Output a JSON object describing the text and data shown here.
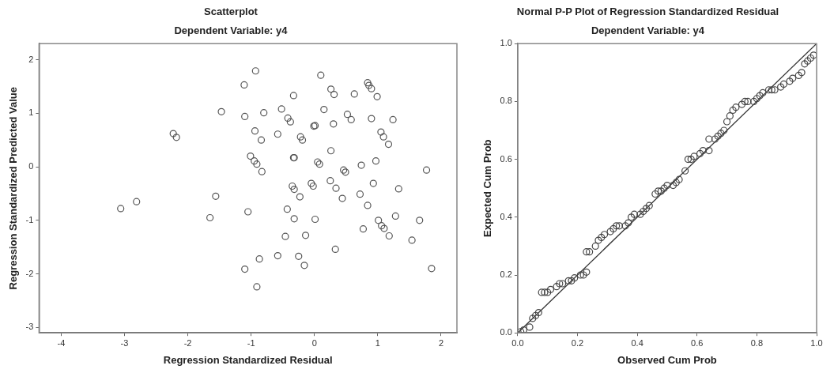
{
  "chart_data": [
    {
      "type": "scatter",
      "title": "Scatterplot",
      "subtitle": "Dependent Variable: y4",
      "xlabel": "Regression Standardized Residual",
      "ylabel": "Regression Standardized Predicted Value",
      "xlim": [
        -4.35,
        2.25
      ],
      "ylim": [
        -3.1,
        2.3
      ],
      "xticks": [
        -4,
        -3,
        -2,
        -1,
        0,
        1,
        2
      ],
      "yticks": [
        -3,
        -2,
        -1,
        0,
        1,
        2
      ],
      "grid": false,
      "legend": false,
      "marker": "circle",
      "series": [
        {
          "color": "#555555",
          "x": [
            -3.06,
            -2.81,
            -2.23,
            -2.18,
            -1.47,
            -1.56,
            -1.65,
            -1.11,
            -1.1,
            -1.05,
            -1.1,
            -1.01,
            -0.93,
            0.1,
            0.84,
            0.86,
            0.9,
            0.26,
            0.31,
            0.63,
            0.99,
            -0.33,
            -0.52,
            -0.8,
            0.15,
            0.52,
            0.58,
            0.9,
            1.24,
            -0.42,
            -0.38,
            -0.01,
            0.01,
            0.3,
            -0.94,
            -0.84,
            -0.58,
            -0.22,
            -0.19,
            1.05,
            1.09,
            1.17,
            0.26,
            -0.95,
            -0.91,
            -0.83,
            -0.33,
            -0.32,
            0.05,
            0.08,
            0.74,
            0.97,
            1.77,
            0.46,
            0.49,
            -0.35,
            -0.32,
            -0.05,
            -0.02,
            0.25,
            0.34,
            0.93,
            1.33,
            -0.23,
            0.44,
            0.72,
            0.84,
            -0.43,
            -0.32,
            0.01,
            1.01,
            1.06,
            1.1,
            1.28,
            1.66,
            0.77,
            1.18,
            1.54,
            -0.46,
            -0.14,
            0.33,
            -0.87,
            -0.58,
            -0.25,
            -0.16,
            -0.91,
            1.85
          ],
          "values": [
            -0.78,
            -0.65,
            0.62,
            0.55,
            1.03,
            -0.55,
            -0.95,
            1.53,
            0.94,
            -0.84,
            -1.91,
            0.2,
            1.79,
            1.71,
            1.57,
            1.52,
            1.46,
            1.45,
            1.35,
            1.36,
            1.31,
            1.33,
            1.08,
            1.01,
            1.07,
            0.98,
            0.88,
            0.9,
            0.88,
            0.91,
            0.84,
            0.76,
            0.77,
            0.8,
            0.67,
            0.5,
            0.61,
            0.56,
            0.5,
            0.65,
            0.56,
            0.42,
            0.3,
            0.11,
            0.05,
            -0.09,
            0.17,
            0.17,
            0.09,
            0.05,
            0.03,
            0.11,
            -0.06,
            -0.06,
            -0.1,
            -0.36,
            -0.42,
            -0.31,
            -0.36,
            -0.26,
            -0.4,
            -0.31,
            -0.41,
            -0.56,
            -0.59,
            -0.51,
            -0.72,
            -0.79,
            -0.97,
            -0.98,
            -1.0,
            -1.1,
            -1.15,
            -0.92,
            -1.0,
            -1.16,
            -1.29,
            -1.37,
            -1.3,
            -1.28,
            -1.54,
            -1.72,
            -1.66,
            -1.67,
            -1.84,
            -2.24,
            -1.9
          ]
        }
      ]
    },
    {
      "type": "scatter",
      "title": "Normal P-P Plot of Regression Standardized Residual",
      "subtitle": "Dependent Variable: y4",
      "xlabel": "Observed Cum Prob",
      "ylabel": "Expected Cum Prob",
      "xlim": [
        0,
        1
      ],
      "ylim": [
        0,
        1
      ],
      "xticks": [
        {
          "value": 0,
          "label": "0.0"
        },
        0.2,
        0.4,
        0.6,
        0.8,
        {
          "value": 1,
          "label": "1.0"
        }
      ],
      "yticks": [
        {
          "value": 0,
          "label": "0.0"
        },
        0.2,
        0.4,
        0.6,
        0.8,
        {
          "value": 1,
          "label": "1.0"
        }
      ],
      "grid": false,
      "legend": false,
      "marker": "circle",
      "series": [
        {
          "type": "scatter",
          "color": "#444444",
          "x": [
            0.01,
            0.02,
            0.04,
            0.05,
            0.06,
            0.07,
            0.08,
            0.09,
            0.1,
            0.11,
            0.13,
            0.14,
            0.15,
            0.17,
            0.18,
            0.19,
            0.21,
            0.22,
            0.23,
            0.23,
            0.24,
            0.26,
            0.27,
            0.28,
            0.29,
            0.31,
            0.32,
            0.33,
            0.34,
            0.36,
            0.37,
            0.38,
            0.39,
            0.41,
            0.42,
            0.43,
            0.44,
            0.46,
            0.47,
            0.48,
            0.49,
            0.5,
            0.52,
            0.53,
            0.54,
            0.56,
            0.57,
            0.58,
            0.59,
            0.61,
            0.62,
            0.64,
            0.64,
            0.66,
            0.67,
            0.68,
            0.69,
            0.7,
            0.71,
            0.72,
            0.73,
            0.75,
            0.76,
            0.77,
            0.79,
            0.8,
            0.81,
            0.82,
            0.84,
            0.85,
            0.86,
            0.88,
            0.89,
            0.91,
            0.92,
            0.94,
            0.95,
            0.96,
            0.97,
            0.98,
            0.99
          ],
          "values": [
            0.004,
            0.01,
            0.02,
            0.05,
            0.06,
            0.07,
            0.14,
            0.14,
            0.14,
            0.15,
            0.16,
            0.17,
            0.17,
            0.18,
            0.18,
            0.19,
            0.2,
            0.2,
            0.21,
            0.28,
            0.28,
            0.3,
            0.32,
            0.33,
            0.34,
            0.35,
            0.36,
            0.37,
            0.37,
            0.37,
            0.38,
            0.4,
            0.41,
            0.41,
            0.42,
            0.43,
            0.44,
            0.48,
            0.49,
            0.49,
            0.5,
            0.51,
            0.51,
            0.52,
            0.53,
            0.56,
            0.6,
            0.6,
            0.61,
            0.62,
            0.63,
            0.63,
            0.67,
            0.67,
            0.68,
            0.69,
            0.7,
            0.73,
            0.75,
            0.77,
            0.78,
            0.79,
            0.8,
            0.8,
            0.8,
            0.81,
            0.82,
            0.83,
            0.84,
            0.84,
            0.84,
            0.85,
            0.86,
            0.87,
            0.88,
            0.89,
            0.9,
            0.93,
            0.94,
            0.95,
            0.96
          ]
        },
        {
          "type": "line",
          "color": "#333333",
          "marker": "none",
          "x": [
            0,
            1
          ],
          "values": [
            0,
            1
          ]
        }
      ]
    }
  ]
}
